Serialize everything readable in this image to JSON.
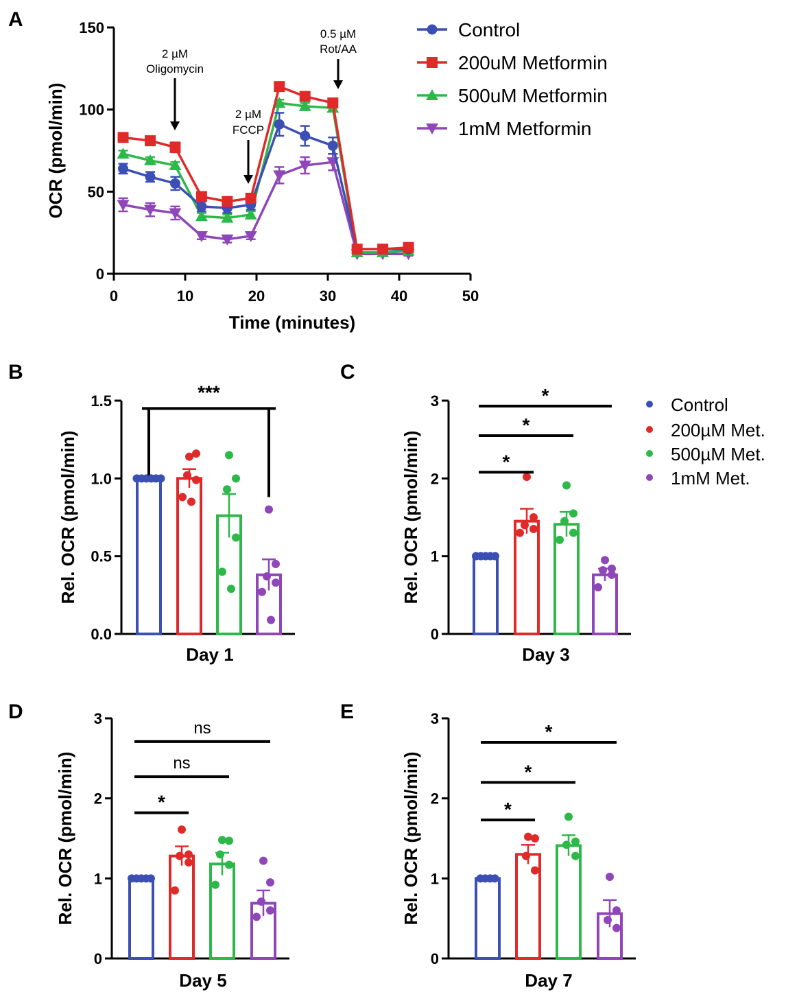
{
  "chart_data": [
    {
      "panel": "A",
      "type": "line",
      "title": "",
      "xlabel": "Time (minutes)",
      "ylabel": "OCR (pmol/min)",
      "xlim": [
        0,
        50
      ],
      "ylim": [
        0,
        150
      ],
      "xticks": [
        "0",
        "10",
        "20",
        "30",
        "40",
        "50"
      ],
      "yticks": [
        "0",
        "50",
        "100",
        "150"
      ],
      "x": [
        1.3,
        5.1,
        8.6,
        12.3,
        15.9,
        19.2,
        23.2,
        26.8,
        30.7,
        34.1,
        37.7,
        41.3
      ],
      "series": [
        {
          "name": "Control",
          "marker": "circle",
          "color": "#3b4fb4",
          "values": [
            64,
            59,
            55,
            41,
            40,
            42,
            91,
            84,
            78,
            15,
            15,
            15
          ],
          "errors": [
            3,
            3,
            4,
            3,
            3,
            3,
            7,
            6,
            5,
            1,
            1,
            1
          ]
        },
        {
          "name": "200uM Metformin",
          "marker": "square",
          "color": "#e02a2a",
          "values": [
            83,
            81,
            77,
            47,
            44,
            46,
            114,
            108,
            104,
            15,
            15,
            16
          ],
          "errors": [
            2,
            2,
            3,
            2,
            2,
            2,
            2,
            2,
            2,
            1,
            1,
            1
          ]
        },
        {
          "name": "500uM Metformin",
          "marker": "triangle-up",
          "color": "#2db84a",
          "values": [
            73,
            69,
            66,
            35,
            34,
            36,
            104,
            102,
            101,
            13,
            13,
            14
          ],
          "errors": [
            2,
            2,
            2,
            2,
            2,
            2,
            2,
            2,
            2,
            1,
            1,
            1
          ]
        },
        {
          "name": "1mM Metformin",
          "marker": "triangle-down",
          "color": "#8e46b8",
          "values": [
            42,
            39,
            37,
            23,
            21,
            23,
            60,
            66,
            68,
            12,
            12,
            12
          ],
          "errors": [
            4,
            4,
            4,
            2,
            2,
            2,
            5,
            5,
            5,
            1,
            1,
            1
          ]
        }
      ],
      "annotations": [
        {
          "label": "2 µM\nOligomycin",
          "x": 8.5
        },
        {
          "label": "2 µM\nFCCP",
          "x": 18.8
        },
        {
          "label": "0.5 µM\nRot/AA",
          "x": 31.0
        }
      ]
    },
    {
      "panel": "B",
      "type": "bar",
      "xlabel": "Day 1",
      "ylabel": "Rel. OCR (pmol/min)",
      "ylim": [
        0,
        1.5
      ],
      "yticks": [
        "0.0",
        "0.5",
        "1.0",
        "1.5"
      ],
      "categories": [
        "Control",
        "200µM Met.",
        "500µM Met.",
        "1mM Met."
      ],
      "values": [
        1.0,
        1.0,
        0.76,
        0.38
      ],
      "errors": [
        0,
        0.06,
        0.14,
        0.1
      ],
      "points": [
        [
          1,
          1,
          1,
          1,
          1,
          1
        ],
        [
          1.14,
          1.16,
          1.02,
          0.99,
          0.88,
          0.85
        ],
        [
          1.15,
          1.0,
          0.93,
          0.62,
          0.4,
          0.29
        ],
        [
          0.8,
          0.45,
          0.37,
          0.33,
          0.27,
          0.09
        ]
      ],
      "comparisons": [
        {
          "from": 0,
          "to": 3,
          "label": "***",
          "y": 1.45
        }
      ]
    },
    {
      "panel": "C",
      "type": "bar",
      "xlabel": "Day 3",
      "ylabel": "Rel. OCR (pmol/min)",
      "ylim": [
        0,
        3
      ],
      "yticks": [
        "0",
        "1",
        "2",
        "3"
      ],
      "categories": [
        "Control",
        "200µM Met.",
        "500µM Met.",
        "1mM Met."
      ],
      "values": [
        1.0,
        1.45,
        1.41,
        0.76
      ],
      "errors": [
        0,
        0.16,
        0.16,
        0.08
      ],
      "points": [
        [
          1,
          1,
          1,
          1,
          1
        ],
        [
          2.02,
          1.5,
          1.4,
          1.35,
          1.3
        ],
        [
          1.91,
          1.55,
          1.45,
          1.3,
          1.21
        ],
        [
          0.95,
          0.84,
          0.82,
          0.76,
          0.6
        ]
      ],
      "comparisons": [
        {
          "from": 0,
          "to": 1,
          "label": "*",
          "y": 2.08
        },
        {
          "from": 0,
          "to": 2,
          "label": "*",
          "y": 2.55
        },
        {
          "from": 0,
          "to": 3,
          "label": "*",
          "y": 2.93
        }
      ]
    },
    {
      "panel": "D",
      "type": "bar",
      "xlabel": "Day 5",
      "ylabel": "Rel. OCR (pmol/min)",
      "ylim": [
        0,
        3
      ],
      "yticks": [
        "0",
        "1",
        "2",
        "3"
      ],
      "categories": [
        "Control",
        "200µM Met.",
        "500µM Met.",
        "1mM Met."
      ],
      "values": [
        1.0,
        1.28,
        1.18,
        0.69
      ],
      "errors": [
        0,
        0.12,
        0.14,
        0.16
      ],
      "points": [
        [
          1,
          1,
          1,
          1,
          1
        ],
        [
          1.61,
          1.3,
          1.28,
          1.2,
          0.85
        ],
        [
          1.48,
          1.47,
          1.3,
          1.17,
          0.92
        ],
        [
          1.22,
          0.95,
          0.71,
          0.6,
          0.52
        ]
      ],
      "comparisons": [
        {
          "from": 0,
          "to": 1,
          "label": "*",
          "y": 1.82
        },
        {
          "from": 0,
          "to": 2,
          "label": "ns",
          "y": 2.27
        },
        {
          "from": 0,
          "to": 3,
          "label": "ns",
          "y": 2.71
        }
      ]
    },
    {
      "panel": "E",
      "type": "bar",
      "xlabel": "Day 7",
      "ylabel": "Rel. OCR (pmol/min)",
      "ylim": [
        0,
        3
      ],
      "yticks": [
        "0",
        "1",
        "2",
        "3"
      ],
      "categories": [
        "Control",
        "200µM Met.",
        "500µM Met.",
        "1mM Met."
      ],
      "values": [
        1.0,
        1.3,
        1.41,
        0.56
      ],
      "errors": [
        0,
        0.12,
        0.13,
        0.17
      ],
      "points": [
        [
          1,
          1,
          1,
          1
        ],
        [
          1.52,
          1.5,
          1.28,
          1.1
        ],
        [
          1.77,
          1.46,
          1.42,
          1.28
        ],
        [
          1.02,
          0.6,
          0.48,
          0.38
        ]
      ],
      "comparisons": [
        {
          "from": 0,
          "to": 1,
          "label": "*",
          "y": 1.73
        },
        {
          "from": 0,
          "to": 2,
          "label": "*",
          "y": 2.2
        },
        {
          "from": 0,
          "to": 3,
          "label": "*",
          "y": 2.7
        }
      ]
    }
  ],
  "panel_letters": [
    "A",
    "B",
    "C",
    "D",
    "E"
  ],
  "bar_legend": {
    "labels": [
      "Control",
      "200µM Met.",
      "500µM Met.",
      "1mM Met."
    ],
    "colors": [
      "#3b4fb4",
      "#e02a2a",
      "#2db84a",
      "#8e46b8"
    ]
  }
}
